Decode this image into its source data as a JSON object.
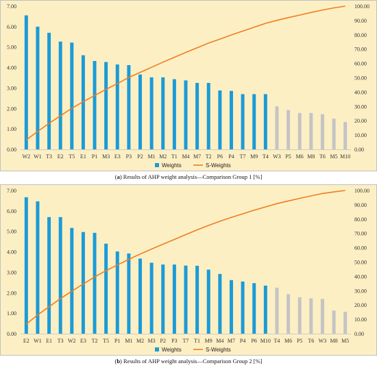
{
  "colors": {
    "plot_bg": "#fcefc4",
    "bar_primary": "#1b9bd7",
    "bar_secondary": "#c4c4c4",
    "line": "#f07d1e",
    "grid": "#cccccc",
    "border": "#bfbfbf"
  },
  "chart_data": [
    {
      "type": "bar",
      "caption": {
        "letter": "a",
        "text": "Results of AHP weight analysis—Comparison Group 1 [%]"
      },
      "categories": [
        "W2",
        "W1",
        "T3",
        "E2",
        "T5",
        "E1",
        "P1",
        "M3",
        "E3",
        "P3",
        "P2",
        "M1",
        "M2",
        "T1",
        "M4",
        "M7",
        "T2",
        "P6",
        "P4",
        "T7",
        "M9",
        "T4",
        "W3",
        "P5",
        "M6",
        "M8",
        "T6",
        "M5",
        "M10"
      ],
      "primary_count": 22,
      "y_left": {
        "lim": [
          0,
          7
        ],
        "ticks": [
          "0.00",
          "1.00",
          "2.00",
          "3.00",
          "4.00",
          "5.00",
          "6.00",
          "7.00"
        ]
      },
      "y_right": {
        "lim": [
          0,
          100
        ],
        "ticks": [
          "0.00",
          "10.00",
          "20.00",
          "30.00",
          "40.00",
          "50.00",
          "60.00",
          "70.00",
          "80.00",
          "90.00",
          "100.00"
        ]
      },
      "series": [
        {
          "name": "Weights",
          "axis": "left",
          "values": [
            6.55,
            6.0,
            5.7,
            5.27,
            5.22,
            4.6,
            4.32,
            4.27,
            4.15,
            4.12,
            3.66,
            3.52,
            3.52,
            3.43,
            3.37,
            3.25,
            3.25,
            2.88,
            2.86,
            2.7,
            2.7,
            2.7,
            2.1,
            1.92,
            1.78,
            1.78,
            1.72,
            1.5,
            1.34
          ]
        },
        {
          "name": "S-Weights",
          "axis": "right",
          "values": [
            6.6,
            12.5,
            18.2,
            23.5,
            28.7,
            33.3,
            37.6,
            41.9,
            46.0,
            50.2,
            53.8,
            57.3,
            60.9,
            64.3,
            67.7,
            70.9,
            74.2,
            77.0,
            79.9,
            82.6,
            85.3,
            88.0,
            90.1,
            92.0,
            93.8,
            95.6,
            97.3,
            98.8,
            100.0
          ]
        }
      ],
      "legend": [
        "Weights",
        "S-Weights"
      ],
      "legend_position": "bottom",
      "grid": false
    },
    {
      "type": "bar",
      "caption": {
        "letter": "b",
        "text": "Results of AHP weight analysis—Comparison Group 2 [%]"
      },
      "categories": [
        "E2",
        "W1",
        "E1",
        "T3",
        "W2",
        "E3",
        "T2",
        "T5",
        "P1",
        "M1",
        "M2",
        "M3",
        "P2",
        "P3",
        "T7",
        "T1",
        "M9",
        "M4",
        "M7",
        "P4",
        "P6",
        "M10",
        "T4",
        "M6",
        "P5",
        "T6",
        "W3",
        "M8",
        "M5"
      ],
      "primary_count": 22,
      "y_left": {
        "lim": [
          0,
          7
        ],
        "ticks": [
          "0.00",
          "1.00",
          "2.00",
          "3.00",
          "4.00",
          "5.00",
          "6.00",
          "7.00"
        ]
      },
      "y_right": {
        "lim": [
          0,
          100
        ],
        "ticks": [
          "0.00",
          "10.00",
          "20.00",
          "30.00",
          "40.00",
          "50.00",
          "60.00",
          "70.00",
          "80.00",
          "90.00",
          "100.00"
        ]
      },
      "series": [
        {
          "name": "Weights",
          "axis": "left",
          "values": [
            6.67,
            6.47,
            5.7,
            5.7,
            5.17,
            4.97,
            4.93,
            4.4,
            4.02,
            3.92,
            3.67,
            3.47,
            3.38,
            3.38,
            3.33,
            3.32,
            3.13,
            2.92,
            2.62,
            2.55,
            2.47,
            2.35,
            2.25,
            1.93,
            1.78,
            1.73,
            1.7,
            1.13,
            1.07
          ]
        },
        {
          "name": "S-Weights",
          "axis": "right",
          "values": [
            6.7,
            13.1,
            18.8,
            24.5,
            29.7,
            34.7,
            39.6,
            44.0,
            48.0,
            51.9,
            55.6,
            59.1,
            62.5,
            65.8,
            69.2,
            72.5,
            75.6,
            78.5,
            81.2,
            83.7,
            86.2,
            88.5,
            90.8,
            92.7,
            94.5,
            96.2,
            97.9,
            99.0,
            100.0
          ]
        }
      ],
      "legend": [
        "Weights",
        "S-Weights"
      ],
      "legend_position": "bottom",
      "grid": false
    }
  ]
}
